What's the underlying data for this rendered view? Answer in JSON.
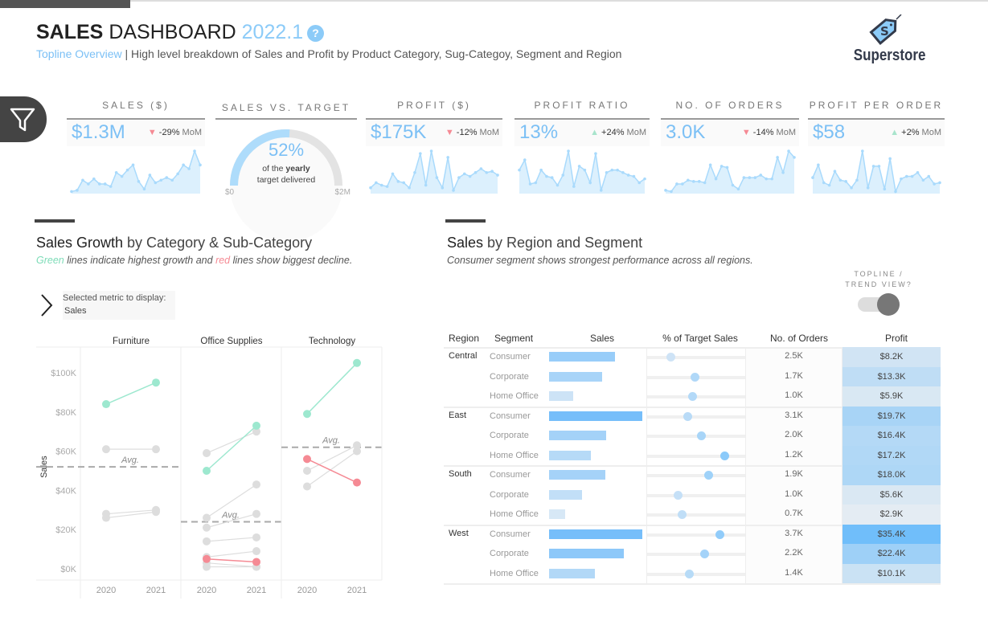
{
  "header": {
    "title_bold": "SALES",
    "title_light": "DASHBOARD",
    "version": "2022.1",
    "help_icon": "question-circle-icon",
    "subtitle_link": "Topline Overview",
    "subtitle_sep": " | ",
    "subtitle_text": "High level breakdown of Sales and Profit by Product Category, Sug-Categoy, Segment and Region",
    "logo_text": "Superstore"
  },
  "colors": {
    "accent": "#7cc0f5",
    "green": "#9de8cf",
    "red": "#f58a94",
    "gray": "#dddddd",
    "dark": "#444444"
  },
  "kpis": [
    {
      "label": "SALES ($)",
      "value": "$1.3M",
      "direction": "down",
      "change": "-29%",
      "unit": "MoM",
      "trend": [
        1,
        2,
        10,
        7,
        11,
        7,
        7,
        5,
        16,
        13,
        18,
        22,
        9,
        3,
        14,
        8,
        10,
        12,
        10,
        15,
        22,
        19,
        33,
        22
      ]
    },
    {
      "label": "PROFIT ($)",
      "value": "$175K",
      "direction": "down",
      "change": "-12%",
      "unit": "MoM",
      "trend": [
        4,
        8,
        6,
        5,
        15,
        9,
        8,
        4,
        16,
        31,
        6,
        33,
        12,
        4,
        28,
        2,
        12,
        15,
        13,
        16,
        19,
        16,
        17,
        14
      ]
    },
    {
      "label": "PROFIT RATIO",
      "value": "13%",
      "direction": "up",
      "change": "+24%",
      "unit": "MoM",
      "trend": [
        18,
        26,
        7,
        8,
        18,
        13,
        12,
        6,
        14,
        33,
        5,
        21,
        18,
        8,
        31,
        2,
        16,
        18,
        18,
        16,
        14,
        13,
        8,
        11
      ]
    },
    {
      "label": "NO. OF ORDERS",
      "value": "3.0K",
      "direction": "down",
      "change": "-14%",
      "unit": "MoM",
      "trend": [
        2,
        1,
        7,
        7,
        10,
        9,
        9,
        8,
        22,
        11,
        21,
        20,
        6,
        3,
        12,
        12,
        12,
        14,
        11,
        11,
        28,
        16,
        33,
        28
      ]
    },
    {
      "label": "PROFIT PER ORDER",
      "value": "$58",
      "direction": "up",
      "change": "+2%",
      "unit": "MoM",
      "trend": [
        12,
        22,
        8,
        6,
        17,
        10,
        9,
        4,
        10,
        33,
        4,
        21,
        21,
        3,
        27,
        1,
        11,
        13,
        13,
        16,
        10,
        13,
        7,
        8
      ]
    }
  ],
  "gauge": {
    "label": "SALES VS. TARGET",
    "percent": 52,
    "pct_text": "52%",
    "line1_a": "of the ",
    "line1_b": "yearly",
    "line2": "target delivered",
    "min": "$0",
    "max": "$2M"
  },
  "filter_icon": "funnel-icon",
  "left": {
    "title_bold": "Sales Growth",
    "title_light": " by Category & Sub-Category",
    "note_green": "Green",
    "note_mid": " lines indicate highest growth and ",
    "note_red": "red",
    "note_end": "  lines show biggest decline.",
    "metric_label": "Selected metric to display:",
    "metric_value": "Sales",
    "metric_icon": "chevron-right-icon"
  },
  "right": {
    "title_bold": "Sales",
    "title_light": " by Region and Segment",
    "note": "Consumer segment shows strongest performance across all regions.",
    "toggle_label": "TOPLINE / TREND VIEW?"
  },
  "chart_data": {
    "type": "line",
    "ylabel": "Sales",
    "ylim": [
      -5,
      112
    ],
    "yticks": [
      0,
      20,
      40,
      60,
      80,
      100
    ],
    "ytick_labels": [
      "$0K",
      "$20K",
      "$40K",
      "$60K",
      "$80K",
      "$100K"
    ],
    "avg_label": "Avg.",
    "x": [
      "2020",
      "2021"
    ],
    "panels": [
      {
        "name": "Furniture",
        "avg": 52,
        "series": [
          {
            "v": [
              84,
              95
            ],
            "c": "green"
          },
          {
            "v": [
              61,
              61
            ],
            "c": "gray"
          },
          {
            "v": [
              28,
              30
            ],
            "c": "gray"
          },
          {
            "v": [
              26,
              29
            ],
            "c": "gray"
          }
        ]
      },
      {
        "name": "Office Supplies",
        "avg": 24,
        "series": [
          {
            "v": [
              59,
              70
            ],
            "c": "gray"
          },
          {
            "v": [
              26,
              43
            ],
            "c": "gray"
          },
          {
            "v": [
              21,
              28
            ],
            "c": "gray"
          },
          {
            "v": [
              14,
              16
            ],
            "c": "gray"
          },
          {
            "v": [
              6,
              9
            ],
            "c": "gray"
          },
          {
            "v": [
              3,
              1
            ],
            "c": "gray"
          },
          {
            "v": [
              1,
              1
            ],
            "c": "gray"
          },
          {
            "v": [
              50,
              73
            ],
            "c": "green"
          },
          {
            "v": [
              5,
              3.5
            ],
            "c": "red"
          }
        ]
      },
      {
        "name": "Technology",
        "avg": 62,
        "series": [
          {
            "v": [
              50,
              63
            ],
            "c": "gray"
          },
          {
            "v": [
              42,
              60
            ],
            "c": "gray"
          },
          {
            "v": [
              79,
              105
            ],
            "c": "green"
          },
          {
            "v": [
              56,
              44
            ],
            "c": "red"
          }
        ]
      }
    ]
  },
  "table": {
    "headers": [
      "Region",
      "Segment",
      "Sales",
      "% of Target Sales",
      "No. of Orders",
      "Profit"
    ],
    "groups": [
      {
        "region": "Central",
        "rows": [
          {
            "segment": "Consumer",
            "sales": 0.71,
            "pct": 0.24,
            "orders": "2.5K",
            "profit": "$8.2K",
            "pv": 8.2
          },
          {
            "segment": "Corporate",
            "sales": 0.57,
            "pct": 0.49,
            "orders": "1.7K",
            "profit": "$13.3K",
            "pv": 13.3
          },
          {
            "segment": "Home Office",
            "sales": 0.26,
            "pct": 0.47,
            "orders": "1.0K",
            "profit": "$5.9K",
            "pv": 5.9
          }
        ]
      },
      {
        "region": "East",
        "rows": [
          {
            "segment": "Consumer",
            "sales": 1.0,
            "pct": 0.42,
            "orders": "3.1K",
            "profit": "$19.7K",
            "pv": 19.7
          },
          {
            "segment": "Corporate",
            "sales": 0.61,
            "pct": 0.56,
            "orders": "2.0K",
            "profit": "$16.4K",
            "pv": 16.4
          },
          {
            "segment": "Home Office",
            "sales": 0.45,
            "pct": 0.8,
            "orders": "1.2K",
            "profit": "$17.2K",
            "pv": 17.2
          }
        ]
      },
      {
        "region": "South",
        "rows": [
          {
            "segment": "Consumer",
            "sales": 0.6,
            "pct": 0.63,
            "orders": "1.9K",
            "profit": "$18.0K",
            "pv": 18.0
          },
          {
            "segment": "Corporate",
            "sales": 0.35,
            "pct": 0.32,
            "orders": "1.0K",
            "profit": "$5.6K",
            "pv": 5.6
          },
          {
            "segment": "Home Office",
            "sales": 0.17,
            "pct": 0.36,
            "orders": "0.7K",
            "profit": "$2.9K",
            "pv": 2.9
          }
        ]
      },
      {
        "region": "West",
        "rows": [
          {
            "segment": "Consumer",
            "sales": 1.0,
            "pct": 0.75,
            "orders": "3.7K",
            "profit": "$35.4K",
            "pv": 35.4
          },
          {
            "segment": "Corporate",
            "sales": 0.8,
            "pct": 0.59,
            "orders": "2.2K",
            "profit": "$22.4K",
            "pv": 22.4
          },
          {
            "segment": "Home Office",
            "sales": 0.49,
            "pct": 0.43,
            "orders": "1.4K",
            "profit": "$10.1K",
            "pv": 10.1
          }
        ]
      }
    ]
  }
}
